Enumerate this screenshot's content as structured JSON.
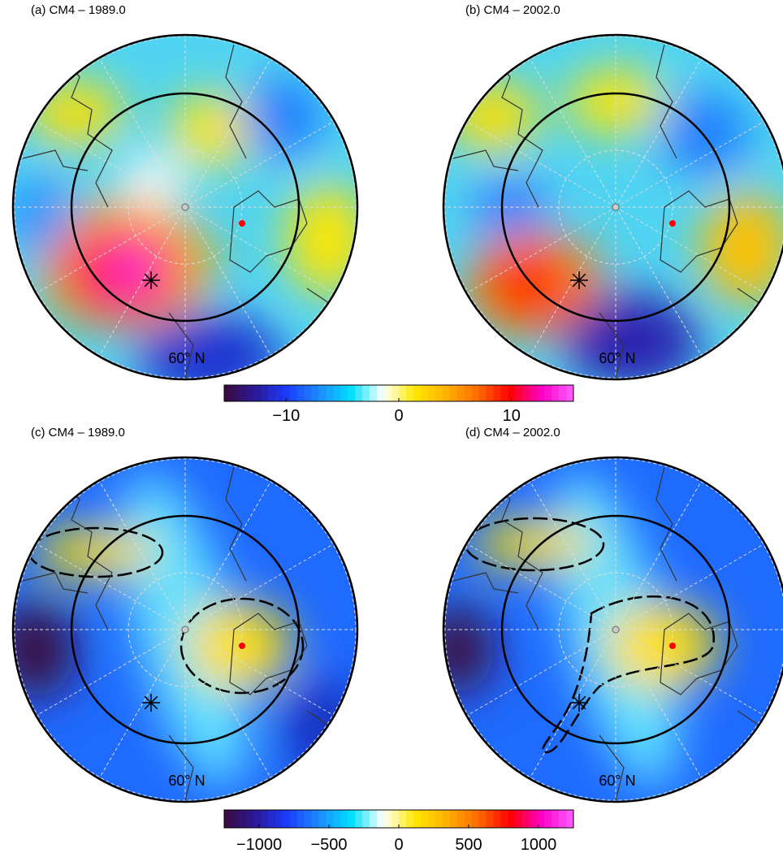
{
  "panels": [
    {
      "title": "(a) CM4 – 1989.0",
      "lat_label": "60° N"
    },
    {
      "title": "(b) CM4 – 2002.0",
      "lat_label": "60° N"
    },
    {
      "title": "(c) CM4 – 1989.0",
      "lat_label": "60° N"
    },
    {
      "title": "(d) CM4 – 2002.0",
      "lat_label": "60° N"
    }
  ],
  "colormap": [
    "#3a0a40",
    "#2a1a9a",
    "#1a3cff",
    "#1e8cff",
    "#00e0ff",
    "#ffffff",
    "#ffe800",
    "#ffb000",
    "#ff6a00",
    "#ff0000",
    "#ff00c8",
    "#ff60ff"
  ],
  "colorbars": [
    {
      "lim": [
        -15.5,
        15.5
      ],
      "ticks": [
        {
          "value": -10,
          "label": "−10"
        },
        0,
        10
      ]
    },
    {
      "lim": [
        -1250,
        1250
      ],
      "ticks": [
        {
          "value": -1000,
          "label": "−1000"
        },
        {
          "value": -500,
          "label": "−500"
        },
        0,
        500,
        1000
      ]
    }
  ]
}
